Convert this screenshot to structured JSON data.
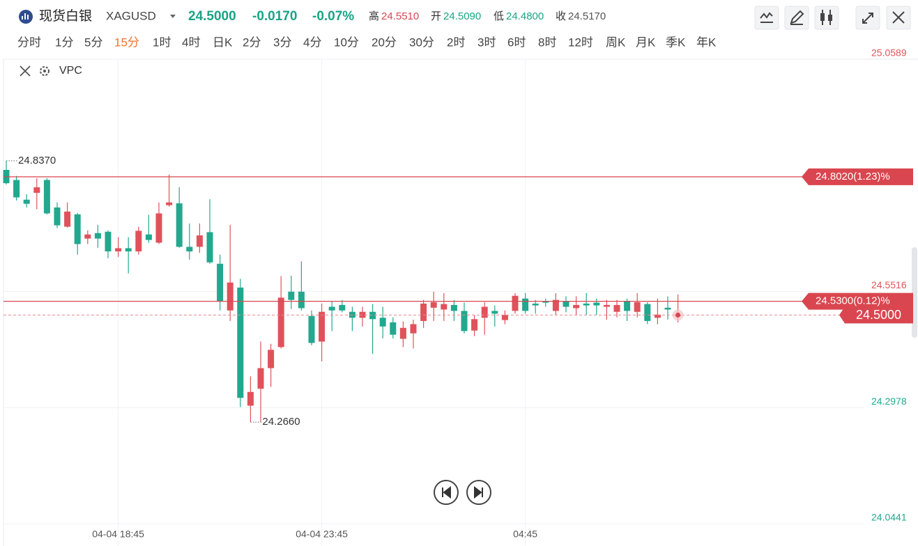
{
  "header": {
    "title": "现货白银",
    "symbol": "XAGUSD",
    "price": "24.5000",
    "change": "-0.0170",
    "change_pct": "-0.07%",
    "stats": [
      {
        "label": "高",
        "value": "24.5510"
      },
      {
        "label": "开",
        "value": "24.5090"
      },
      {
        "label": "低",
        "value": "24.4800"
      },
      {
        "label": "收",
        "value": "24.5170"
      }
    ]
  },
  "intervals": {
    "items": [
      "分时",
      "1分",
      "5分",
      "15分",
      "1时",
      "4时",
      "日K",
      "2分",
      "3分",
      "4分",
      "10分",
      "20分",
      "30分",
      "2时",
      "3时",
      "6时",
      "8时",
      "12时",
      "周K",
      "月K",
      "季K",
      "年K"
    ],
    "active": 3
  },
  "indicator": "VPC",
  "chart_data": {
    "type": "candlestick",
    "categories": [
      null,
      null,
      null,
      null,
      null,
      null,
      null,
      null,
      null,
      null,
      null,
      "04-04 18:45",
      null,
      null,
      null,
      null,
      null,
      null,
      null,
      null,
      null,
      null,
      null,
      null,
      null,
      null,
      null,
      null,
      null,
      null,
      null,
      "04-04 23:45",
      null,
      null,
      null,
      null,
      null,
      null,
      null,
      null,
      null,
      null,
      null,
      null,
      null,
      null,
      null,
      null,
      null,
      null,
      null,
      "04:45",
      null,
      null,
      null,
      null,
      null,
      null,
      null,
      null,
      null,
      null,
      null,
      null,
      null,
      null,
      null
    ],
    "open": [
      24.817,
      24.795,
      24.752,
      24.767,
      24.795,
      24.735,
      24.693,
      24.72,
      24.667,
      24.679,
      24.682,
      24.639,
      24.646,
      24.639,
      24.676,
      24.658,
      24.74,
      24.744,
      24.649,
      24.649,
      24.681,
      24.612,
      24.51,
      24.56,
      24.302,
      24.339,
      24.384,
      24.43,
      24.551,
      24.551,
      24.498,
      24.442,
      24.518,
      24.522,
      24.507,
      24.494,
      24.507,
      24.494,
      24.484,
      24.448,
      24.46,
      24.487,
      24.516,
      24.512,
      24.522,
      24.509,
      24.466,
      24.494,
      24.509,
      24.489,
      24.509,
      24.536,
      24.525,
      24.53,
      24.509,
      24.53,
      24.515,
      24.525,
      24.527,
      24.518,
      24.507,
      24.53,
      24.507,
      24.524,
      24.494,
      24.516,
      24.497
    ],
    "high": [
      24.837,
      24.804,
      24.764,
      24.799,
      24.799,
      24.746,
      24.746,
      24.723,
      24.685,
      24.697,
      24.685,
      24.67,
      24.67,
      24.693,
      24.719,
      24.746,
      24.807,
      24.779,
      24.7,
      24.7,
      24.753,
      24.632,
      24.697,
      24.579,
      24.366,
      24.442,
      24.437,
      24.585,
      24.586,
      24.617,
      24.51,
      24.525,
      24.53,
      24.533,
      24.518,
      24.518,
      24.524,
      24.518,
      24.495,
      24.486,
      24.49,
      24.533,
      24.551,
      24.548,
      24.533,
      24.527,
      24.5,
      24.528,
      24.521,
      24.51,
      24.548,
      24.548,
      24.533,
      24.536,
      24.548,
      24.541,
      24.541,
      24.548,
      24.536,
      24.533,
      24.533,
      24.536,
      24.548,
      24.528,
      24.536,
      24.541,
      24.545
    ],
    "low": [
      24.785,
      24.75,
      24.735,
      24.731,
      24.72,
      24.69,
      24.691,
      24.632,
      24.655,
      24.647,
      24.624,
      24.627,
      24.591,
      24.632,
      24.658,
      24.655,
      24.737,
      24.647,
      24.621,
      24.636,
      24.612,
      24.51,
      24.487,
      24.299,
      24.266,
      24.267,
      24.343,
      24.427,
      24.513,
      24.51,
      24.434,
      24.399,
      24.465,
      24.506,
      24.465,
      24.475,
      24.415,
      24.449,
      24.449,
      24.43,
      24.427,
      24.472,
      24.487,
      24.487,
      24.487,
      24.46,
      24.454,
      24.457,
      24.475,
      24.48,
      24.503,
      24.503,
      24.503,
      24.518,
      24.5,
      24.506,
      24.5,
      24.5,
      24.5,
      24.49,
      24.495,
      24.487,
      24.495,
      24.48,
      24.48,
      24.49,
      24.484
    ],
    "close": [
      24.788,
      24.757,
      24.743,
      24.779,
      24.722,
      24.696,
      24.726,
      24.655,
      24.676,
      24.667,
      24.639,
      24.646,
      24.639,
      24.684,
      24.664,
      24.722,
      24.746,
      24.649,
      24.639,
      24.674,
      24.615,
      24.53,
      24.571,
      24.319,
      24.332,
      24.384,
      24.424,
      24.538,
      24.533,
      24.515,
      24.439,
      24.507,
      24.51,
      24.51,
      24.494,
      24.507,
      24.491,
      24.475,
      24.457,
      24.472,
      24.48,
      24.525,
      24.528,
      24.524,
      24.509,
      24.465,
      24.491,
      24.518,
      24.503,
      24.5,
      24.542,
      24.509,
      24.521,
      24.527,
      24.533,
      24.518,
      24.522,
      24.521,
      24.521,
      24.522,
      24.522,
      24.509,
      24.528,
      24.487,
      24.501,
      24.512,
      24.5
    ],
    "up_color": "#e0525b",
    "down_color": "#22a88e",
    "ylim": [
      24.0441,
      25.0589
    ],
    "yticks": [
      24.0441,
      24.2978,
      24.5516,
      25.0589
    ],
    "grid": true,
    "price_lines": [
      {
        "value": 24.802,
        "label": "24.8020(1.23)%"
      },
      {
        "value": 24.53,
        "label": "24.5300(0.12)%"
      }
    ],
    "last_price": {
      "value": 24.5,
      "label": "24.5000"
    },
    "annotations": [
      {
        "value": 24.837,
        "label": "24.8370"
      },
      {
        "value": 24.266,
        "label": "24.2660"
      }
    ]
  }
}
